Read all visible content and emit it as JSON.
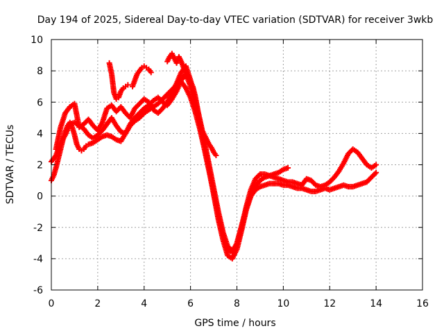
{
  "chart_data": {
    "type": "scatter",
    "title": "Day 194 of 2025, Sidereal Day-to-day VTEC variation (SDTVAR) for receiver 3wkb",
    "xlabel": "GPS time / hours",
    "ylabel": "SDTVAR / TECUs",
    "xlim": [
      0,
      16
    ],
    "ylim": [
      -6,
      10
    ],
    "xticks": [
      "0",
      "2",
      "4",
      "6",
      "8",
      "10",
      "12",
      "14",
      "16"
    ],
    "yticks": [
      "-6",
      "-4",
      "-2",
      "0",
      "2",
      "4",
      "6",
      "8",
      "10"
    ],
    "grid": true,
    "marker": "+",
    "color": "#ff0000",
    "series": [
      {
        "x": [
          0.0,
          0.1,
          0.2,
          0.3,
          0.4,
          0.5,
          0.6,
          0.7,
          0.8,
          0.9,
          1.0,
          1.1,
          1.2,
          1.3,
          1.4,
          1.5,
          1.6,
          1.8,
          2.0,
          2.2,
          2.4,
          2.6,
          2.8,
          3.0,
          3.2,
          3.4,
          3.6,
          3.8,
          4.0,
          4.2,
          4.4,
          4.6,
          4.8,
          5.0,
          5.2,
          5.4,
          5.6,
          5.8,
          6.0,
          6.2,
          6.4,
          6.6,
          6.8,
          7.0,
          7.2,
          7.4,
          7.6,
          7.8,
          8.0,
          8.2,
          8.4,
          8.6,
          8.8,
          9.0,
          9.2,
          9.4,
          9.6,
          9.8,
          10.0,
          10.2,
          10.4,
          10.6,
          10.8,
          11.0,
          11.2,
          11.4,
          11.6,
          11.8,
          12.0,
          12.2,
          12.4,
          12.6,
          12.8,
          13.0,
          13.2,
          13.4,
          13.6,
          13.8,
          14.0
        ],
        "y": [
          1.0,
          1.3,
          1.8,
          2.4,
          3.0,
          3.6,
          4.1,
          4.5,
          4.7,
          4.4,
          3.9,
          3.3,
          3.0,
          2.9,
          3.0,
          3.2,
          3.3,
          3.4,
          3.6,
          3.8,
          3.9,
          3.8,
          3.6,
          3.5,
          4.0,
          4.5,
          4.8,
          5.0,
          5.3,
          5.5,
          5.7,
          5.9,
          6.2,
          6.5,
          6.8,
          7.1,
          7.3,
          6.9,
          6.3,
          5.4,
          4.3,
          3.0,
          1.6,
          0.2,
          -1.2,
          -2.5,
          -3.4,
          -3.6,
          -3.0,
          -1.9,
          -0.8,
          0.0,
          0.4,
          0.6,
          0.7,
          0.8,
          0.8,
          0.8,
          0.7,
          0.7,
          0.6,
          0.5,
          0.5,
          0.4,
          0.3,
          0.3,
          0.4,
          0.5,
          0.4,
          0.5,
          0.6,
          0.7,
          0.6,
          0.6,
          0.7,
          0.8,
          0.9,
          1.2,
          1.5
        ]
      },
      {
        "x": [
          0.0,
          0.2,
          0.4,
          0.6,
          0.8,
          1.0,
          1.2,
          1.4,
          1.6,
          1.8,
          2.0,
          2.2,
          2.4,
          2.6,
          2.8,
          3.0,
          3.2,
          3.4,
          3.6,
          3.8,
          4.0,
          4.2,
          4.4,
          4.6,
          4.8,
          5.0,
          5.2,
          5.4,
          5.6,
          5.8,
          6.0,
          6.2,
          6.4,
          6.6,
          6.8,
          7.0,
          7.2,
          7.4,
          7.6,
          7.8,
          8.0,
          8.2,
          8.4,
          8.6,
          8.8,
          9.0,
          9.2,
          9.4,
          9.6,
          9.8,
          10.0,
          10.2
        ],
        "y": [
          2.2,
          2.6,
          3.4,
          3.9,
          4.6,
          4.7,
          4.5,
          4.3,
          3.9,
          3.7,
          3.9,
          4.2,
          4.6,
          5.0,
          4.5,
          4.1,
          4.0,
          4.6,
          5.0,
          5.3,
          5.6,
          5.8,
          6.1,
          6.3,
          6.0,
          5.8,
          6.2,
          6.7,
          7.4,
          7.8,
          7.0,
          5.9,
          4.6,
          3.2,
          1.7,
          0.1,
          -1.5,
          -2.8,
          -3.8,
          -4.0,
          -3.4,
          -2.2,
          -0.9,
          0.0,
          0.6,
          1.0,
          1.2,
          1.3,
          1.4,
          1.5,
          1.7,
          1.8
        ]
      },
      {
        "x": [
          0.2,
          0.4,
          0.6,
          0.8,
          1.0,
          1.2,
          1.4,
          1.6,
          1.8,
          2.0,
          2.2,
          2.4,
          2.6,
          2.8,
          3.0,
          3.2,
          3.4,
          3.6,
          3.8,
          4.0,
          4.2,
          4.4,
          4.6,
          4.8,
          5.0,
          5.2,
          5.4,
          5.6,
          5.8,
          6.0,
          6.2,
          6.4,
          6.6,
          6.8,
          7.0,
          7.2,
          7.4,
          7.6,
          7.8,
          8.0,
          8.2,
          8.4,
          8.6,
          8.8,
          9.0,
          9.2,
          9.4,
          9.6,
          9.8,
          10.0,
          10.2,
          10.4,
          10.6,
          10.8,
          11.0,
          11.2,
          11.4,
          11.6,
          11.8,
          12.0,
          12.2,
          12.4,
          12.6,
          12.8,
          13.0,
          13.2,
          13.4,
          13.6,
          13.8,
          14.0
        ],
        "y": [
          3.0,
          4.4,
          5.3,
          5.7,
          5.9,
          4.4,
          4.6,
          4.9,
          4.5,
          4.2,
          4.7,
          5.6,
          5.8,
          5.4,
          5.7,
          5.3,
          5.0,
          5.6,
          5.9,
          6.2,
          6.0,
          5.5,
          5.3,
          5.6,
          6.0,
          6.6,
          7.2,
          7.9,
          8.3,
          7.4,
          6.2,
          4.9,
          3.5,
          2.0,
          0.5,
          -1.0,
          -2.3,
          -3.2,
          -3.5,
          -3.1,
          -2.0,
          -0.7,
          0.4,
          1.1,
          1.4,
          1.4,
          1.3,
          1.2,
          1.1,
          1.0,
          0.9,
          0.9,
          0.8,
          0.7,
          1.1,
          1.0,
          0.7,
          0.6,
          0.7,
          0.9,
          1.2,
          1.6,
          2.1,
          2.7,
          3.0,
          2.8,
          2.4,
          2.0,
          1.8,
          2.0
        ]
      },
      {
        "x": [
          2.5,
          2.6,
          2.7,
          2.8,
          2.9,
          3.0,
          3.1,
          3.2,
          3.3
        ],
        "y": [
          8.5,
          7.8,
          6.6,
          6.2,
          6.3,
          6.7,
          6.9,
          7.0,
          7.1
        ]
      },
      {
        "x": [
          3.5,
          3.6,
          3.7,
          3.8,
          3.9,
          4.0,
          4.1,
          4.2,
          4.3
        ],
        "y": [
          7.0,
          7.4,
          7.8,
          8.0,
          8.2,
          8.3,
          8.2,
          8.1,
          7.9
        ]
      },
      {
        "x": [
          5.0,
          5.1,
          5.2,
          5.3,
          5.4,
          5.5,
          5.6,
          5.7,
          5.8,
          5.9,
          6.0,
          6.1,
          6.2,
          6.3,
          6.4,
          6.5,
          6.6,
          6.7,
          6.8,
          6.9,
          7.0,
          7.1
        ],
        "y": [
          8.6,
          8.9,
          9.1,
          8.8,
          8.5,
          8.9,
          8.6,
          8.2,
          7.9,
          7.6,
          7.3,
          7.0,
          6.4,
          5.6,
          4.8,
          4.2,
          3.9,
          3.6,
          3.3,
          3.1,
          2.8,
          2.6
        ]
      }
    ]
  }
}
